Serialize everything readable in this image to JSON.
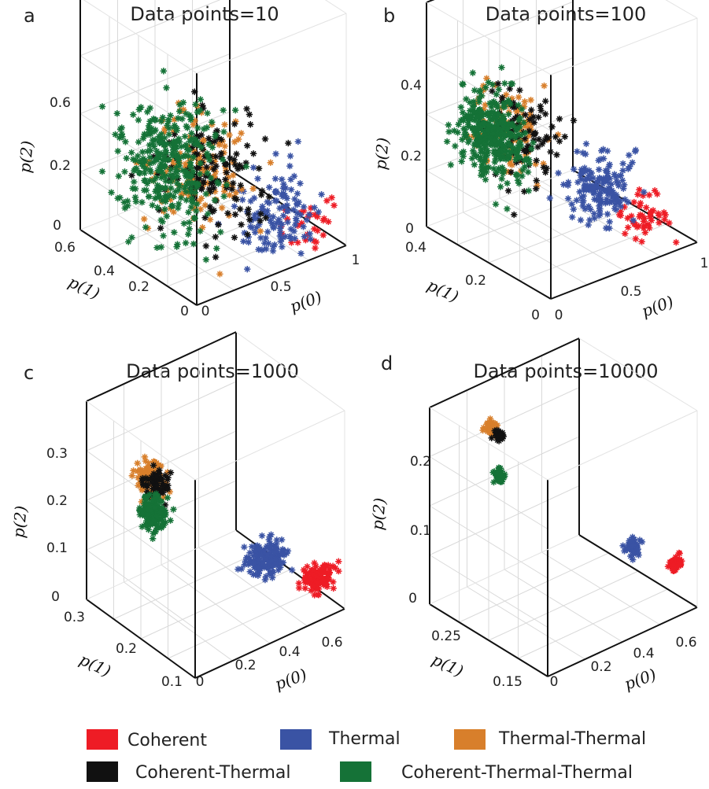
{
  "colors": {
    "Coherent": "#ee1c25",
    "Thermal": "#3a53a4",
    "Thermal-Thermal": "#d87f2b",
    "Coherent-Thermal": "#111111",
    "Coherent-Thermal-Thermal": "#157237"
  },
  "legend": {
    "items": [
      "Coherent",
      "Thermal",
      "Thermal-Thermal",
      "Coherent-Thermal",
      "Coherent-Thermal-Thermal"
    ]
  },
  "chart_data": [
    {
      "type": "scatter",
      "panel": "a",
      "title": "Data points=10",
      "xlabel": "p(0)",
      "ylabel": "p(1)",
      "zlabel": "p(2)",
      "x_ticks": [
        "0",
        "0.5",
        "1"
      ],
      "y_ticks": [
        "0",
        "0.2",
        "0.4",
        "0.6"
      ],
      "z_ticks": [
        "0",
        "0.2",
        "0.6"
      ],
      "series": [
        {
          "name": "Coherent",
          "center": [
            0.82,
            0.06,
            0.08
          ],
          "spread": [
            0.09,
            0.03,
            0.04
          ],
          "n": 30
        },
        {
          "name": "Thermal",
          "center": [
            0.7,
            0.12,
            0.1
          ],
          "spread": [
            0.12,
            0.05,
            0.06
          ],
          "n": 120
        },
        {
          "name": "Thermal-Thermal",
          "center": [
            0.38,
            0.3,
            0.22
          ],
          "spread": [
            0.14,
            0.09,
            0.08
          ],
          "n": 140
        },
        {
          "name": "Coherent-Thermal",
          "center": [
            0.42,
            0.26,
            0.22
          ],
          "spread": [
            0.14,
            0.09,
            0.08
          ],
          "n": 130
        },
        {
          "name": "Coherent-Thermal-Thermal",
          "center": [
            0.3,
            0.38,
            0.22
          ],
          "spread": [
            0.12,
            0.1,
            0.09
          ],
          "n": 320
        }
      ]
    },
    {
      "type": "scatter",
      "panel": "b",
      "title": "Data points=100",
      "xlabel": "p(0)",
      "ylabel": "p(1)",
      "zlabel": "p(2)",
      "x_ticks": [
        "0",
        "0.5",
        "1"
      ],
      "y_ticks": [
        "0",
        "0.2",
        "0.4"
      ],
      "z_ticks": [
        "0",
        "0.2",
        "0.4"
      ],
      "series": [
        {
          "name": "Coherent",
          "center": [
            0.74,
            0.05,
            0.06
          ],
          "spread": [
            0.07,
            0.02,
            0.02
          ],
          "n": 50
        },
        {
          "name": "Thermal",
          "center": [
            0.6,
            0.12,
            0.1
          ],
          "spread": [
            0.09,
            0.03,
            0.03
          ],
          "n": 160
        },
        {
          "name": "Thermal-Thermal",
          "center": [
            0.32,
            0.28,
            0.18
          ],
          "spread": [
            0.07,
            0.05,
            0.04
          ],
          "n": 90
        },
        {
          "name": "Coherent-Thermal",
          "center": [
            0.36,
            0.26,
            0.18
          ],
          "spread": [
            0.07,
            0.05,
            0.04
          ],
          "n": 90
        },
        {
          "name": "Coherent-Thermal-Thermal",
          "center": [
            0.28,
            0.32,
            0.17
          ],
          "spread": [
            0.06,
            0.05,
            0.04
          ],
          "n": 360
        }
      ]
    },
    {
      "type": "scatter",
      "panel": "c",
      "title": "Data points=1000",
      "xlabel": "p(0)",
      "ylabel": "p(1)",
      "zlabel": "p(2)",
      "x_ticks": [
        "0",
        "0.2",
        "0.4",
        "0.6"
      ],
      "y_ticks": [
        "0.1",
        "0.2",
        "0.3"
      ],
      "z_ticks": [
        "0",
        "0.1",
        "0.2",
        "0.3"
      ],
      "series": [
        {
          "name": "Coherent",
          "center": [
            0.6,
            0.06,
            0.06
          ],
          "spread": [
            0.03,
            0.01,
            0.01
          ],
          "n": 120
        },
        {
          "name": "Thermal",
          "center": [
            0.48,
            0.13,
            0.08
          ],
          "spread": [
            0.04,
            0.012,
            0.012
          ],
          "n": 160
        },
        {
          "name": "Thermal-Thermal",
          "center": [
            0.15,
            0.24,
            0.21
          ],
          "spread": [
            0.025,
            0.012,
            0.012
          ],
          "n": 110
        },
        {
          "name": "Coherent-Thermal",
          "center": [
            0.16,
            0.23,
            0.2
          ],
          "spread": [
            0.025,
            0.012,
            0.012
          ],
          "n": 60
        },
        {
          "name": "Coherent-Thermal-Thermal",
          "center": [
            0.16,
            0.24,
            0.15
          ],
          "spread": [
            0.02,
            0.01,
            0.012
          ],
          "n": 200
        }
      ]
    },
    {
      "type": "scatter",
      "panel": "d",
      "title": "Data points=10000",
      "xlabel": "p(0)",
      "ylabel": "p(1)",
      "zlabel": "p(2)",
      "x_ticks": [
        "0",
        "0.2",
        "0.4",
        "0.6"
      ],
      "y_ticks": [
        "0.15",
        "0.25"
      ],
      "z_ticks": [
        "0",
        "0.1",
        "0.2"
      ],
      "series": [
        {
          "name": "Coherent",
          "center": [
            0.6,
            0.06,
            0.06
          ],
          "spread": [
            0.012,
            0.004,
            0.004
          ],
          "n": 60
        },
        {
          "name": "Thermal",
          "center": [
            0.48,
            0.13,
            0.08
          ],
          "spread": [
            0.012,
            0.004,
            0.004
          ],
          "n": 60
        },
        {
          "name": "Thermal-Thermal",
          "center": [
            0.15,
            0.25,
            0.2
          ],
          "spread": [
            0.01,
            0.004,
            0.004
          ],
          "n": 50
        },
        {
          "name": "Coherent-Thermal",
          "center": [
            0.16,
            0.24,
            0.195
          ],
          "spread": [
            0.008,
            0.003,
            0.003
          ],
          "n": 25
        },
        {
          "name": "Coherent-Thermal-Thermal",
          "center": [
            0.16,
            0.24,
            0.15
          ],
          "spread": [
            0.008,
            0.003,
            0.004
          ],
          "n": 50
        }
      ]
    }
  ]
}
